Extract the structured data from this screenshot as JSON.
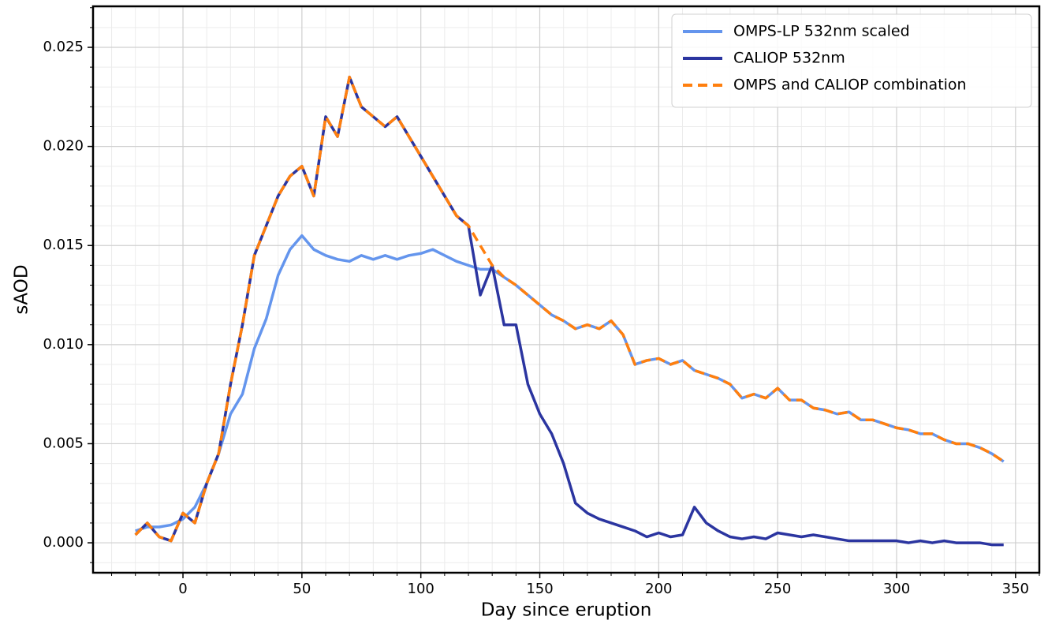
{
  "chart_data": {
    "type": "line",
    "x_label": "Day since eruption",
    "y_label": "sAOD",
    "x": [
      -20,
      -15,
      -10,
      -5,
      0,
      5,
      10,
      15,
      20,
      25,
      30,
      35,
      40,
      45,
      50,
      55,
      60,
      65,
      70,
      75,
      80,
      85,
      90,
      95,
      100,
      105,
      110,
      115,
      120,
      125,
      130,
      135,
      140,
      145,
      150,
      155,
      160,
      165,
      170,
      175,
      180,
      185,
      190,
      195,
      200,
      205,
      210,
      215,
      220,
      225,
      230,
      235,
      240,
      245,
      250,
      255,
      260,
      265,
      270,
      275,
      280,
      285,
      290,
      295,
      300,
      305,
      310,
      315,
      320,
      325,
      330,
      335,
      340,
      345
    ],
    "series": [
      {
        "name": "OMPS-LP 532nm scaled",
        "color": "#6495ed",
        "linestyle": "solid",
        "values": [
          0.0006,
          0.0008,
          0.0008,
          0.0009,
          0.0012,
          0.0018,
          0.003,
          0.0045,
          0.0065,
          0.0075,
          0.0098,
          0.0113,
          0.0135,
          0.0148,
          0.0155,
          0.0148,
          0.0145,
          0.0143,
          0.0142,
          0.0145,
          0.0143,
          0.0145,
          0.0143,
          0.0145,
          0.0146,
          0.0148,
          0.0145,
          0.0142,
          0.014,
          0.0138,
          0.0138,
          0.0134,
          0.013,
          0.0125,
          0.012,
          0.0115,
          0.0112,
          0.0108,
          0.011,
          0.0108,
          0.0112,
          0.0105,
          0.009,
          0.0092,
          0.0093,
          0.009,
          0.0092,
          0.0087,
          0.0085,
          0.0083,
          0.008,
          0.0073,
          0.0075,
          0.0073,
          0.0078,
          0.0072,
          0.0072,
          0.0068,
          0.0067,
          0.0065,
          0.0066,
          0.0062,
          0.0062,
          0.006,
          0.0058,
          0.0057,
          0.0055,
          0.0055,
          0.0052,
          0.005,
          0.005,
          0.0048,
          0.0045,
          0.0041
        ]
      },
      {
        "name": "CALIOP 532nm",
        "color": "#2b35a0",
        "linestyle": "solid",
        "values": [
          0.0004,
          0.001,
          0.0003,
          0.0001,
          0.0015,
          0.001,
          0.003,
          0.0045,
          0.008,
          0.011,
          0.0145,
          0.016,
          0.0175,
          0.0185,
          0.019,
          0.0175,
          0.0215,
          0.0205,
          0.0235,
          0.022,
          0.0215,
          0.021,
          0.0215,
          0.0205,
          0.0195,
          0.0185,
          0.0175,
          0.0165,
          0.016,
          0.0125,
          0.014,
          0.011,
          0.011,
          0.008,
          0.0065,
          0.0055,
          0.004,
          0.002,
          0.0015,
          0.0012,
          0.001,
          0.0008,
          0.0006,
          0.0003,
          0.0005,
          0.0003,
          0.0004,
          0.0018,
          0.001,
          0.0006,
          0.0003,
          0.0002,
          0.0003,
          0.0002,
          0.0005,
          0.0004,
          0.0003,
          0.0004,
          0.0003,
          0.0002,
          0.0001,
          0.0001,
          0.0001,
          0.0001,
          0.0001,
          0.0,
          0.0001,
          0.0,
          0.0001,
          0.0,
          0.0,
          0.0,
          -0.0001,
          -0.0001
        ]
      },
      {
        "name": "OMPS and CALIOP combination",
        "color": "#ff7f0e",
        "linestyle": "dashed",
        "values": [
          0.0004,
          0.001,
          0.0003,
          0.0001,
          0.0015,
          0.001,
          0.003,
          0.0045,
          0.008,
          0.011,
          0.0145,
          0.016,
          0.0175,
          0.0185,
          0.019,
          0.0175,
          0.0215,
          0.0205,
          0.0235,
          0.022,
          0.0215,
          0.021,
          0.0215,
          0.0205,
          0.0195,
          0.0185,
          0.0175,
          0.0165,
          0.016,
          0.015,
          0.014,
          0.0134,
          0.013,
          0.0125,
          0.012,
          0.0115,
          0.0112,
          0.0108,
          0.011,
          0.0108,
          0.0112,
          0.0105,
          0.009,
          0.0092,
          0.0093,
          0.009,
          0.0092,
          0.0087,
          0.0085,
          0.0083,
          0.008,
          0.0073,
          0.0075,
          0.0073,
          0.0078,
          0.0072,
          0.0072,
          0.0068,
          0.0067,
          0.0065,
          0.0066,
          0.0062,
          0.0062,
          0.006,
          0.0058,
          0.0057,
          0.0055,
          0.0055,
          0.0052,
          0.005,
          0.005,
          0.0048,
          0.0045,
          0.0041
        ]
      }
    ],
    "xlim": [
      -37.8,
      360
    ],
    "ylim": [
      -0.00151,
      0.02707
    ],
    "xticks": [
      0,
      50,
      100,
      150,
      200,
      250,
      300,
      350
    ],
    "yticks": [
      {
        "value": 0,
        "label": "0.000"
      },
      0.005,
      {
        "value": 0.01,
        "label": "0.010"
      },
      0.015,
      {
        "value": 0.02,
        "label": "0.020"
      },
      0.025
    ],
    "grid": true,
    "minor_grid": true,
    "legend": "upper right"
  }
}
